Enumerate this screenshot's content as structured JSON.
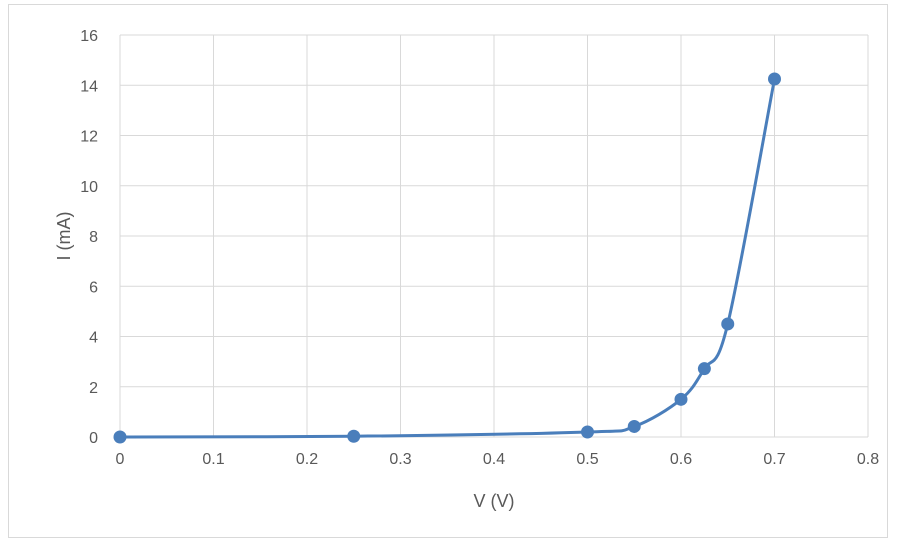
{
  "chart_data": {
    "type": "scatter",
    "title": "",
    "xlabel": "V (V)",
    "ylabel": "I (mA)",
    "xlim": [
      0,
      0.8
    ],
    "ylim": [
      0,
      16
    ],
    "x_ticks": [
      "0",
      "0.1",
      "0.2",
      "0.3",
      "0.4",
      "0.5",
      "0.6",
      "0.7",
      "0.8"
    ],
    "y_ticks": [
      "0",
      "2",
      "4",
      "6",
      "8",
      "10",
      "12",
      "14",
      "16"
    ],
    "grid": true,
    "smoothed_line": true,
    "series": [
      {
        "color": "#4a7ebb",
        "x": [
          0,
          0.25,
          0.5,
          0.55,
          0.6,
          0.625,
          0.65,
          0.7
        ],
        "y": [
          0,
          0.03,
          0.2,
          0.42,
          1.5,
          2.72,
          4.5,
          14.25
        ]
      }
    ]
  }
}
